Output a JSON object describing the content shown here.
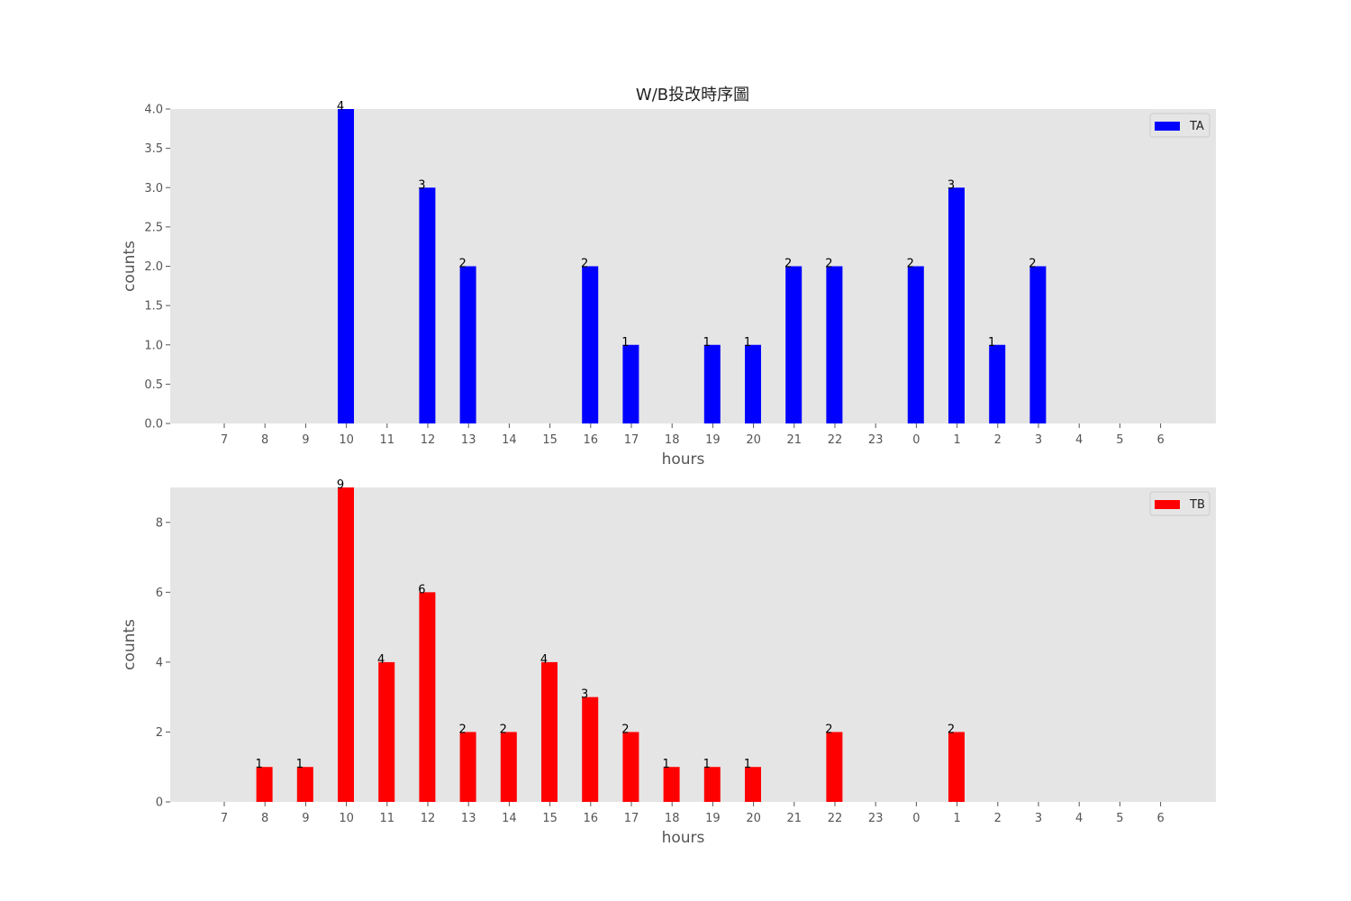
{
  "title": "W/B投改時序圖",
  "chart_data": [
    {
      "type": "bar",
      "categories": [
        "7",
        "8",
        "9",
        "10",
        "11",
        "12",
        "13",
        "14",
        "15",
        "16",
        "17",
        "18",
        "19",
        "20",
        "21",
        "22",
        "23",
        "0",
        "1",
        "2",
        "3",
        "4",
        "5",
        "6"
      ],
      "series": [
        {
          "name": "TA",
          "color": "#0000ff",
          "values": [
            0,
            0,
            0,
            4,
            0,
            3,
            2,
            0,
            0,
            2,
            1,
            0,
            1,
            1,
            2,
            2,
            0,
            2,
            3,
            1,
            2,
            0,
            0,
            0
          ]
        }
      ],
      "xlabel": "hours",
      "ylabel": "counts",
      "ylim": [
        0,
        4.0
      ],
      "yticks": [
        "0.0",
        "0.5",
        "1.0",
        "1.5",
        "2.0",
        "2.5",
        "3.0",
        "3.5",
        "4.0"
      ],
      "grid": false,
      "legend": "top-right"
    },
    {
      "type": "bar",
      "categories": [
        "7",
        "8",
        "9",
        "10",
        "11",
        "12",
        "13",
        "14",
        "15",
        "16",
        "17",
        "18",
        "19",
        "20",
        "21",
        "22",
        "23",
        "0",
        "1",
        "2",
        "3",
        "4",
        "5",
        "6"
      ],
      "series": [
        {
          "name": "TB",
          "color": "#ff0000",
          "values": [
            0,
            1,
            1,
            9,
            4,
            6,
            2,
            2,
            4,
            3,
            2,
            1,
            1,
            1,
            0,
            2,
            0,
            0,
            2,
            0,
            0,
            0,
            0,
            0
          ]
        }
      ],
      "xlabel": "hours",
      "ylabel": "counts",
      "ylim": [
        0,
        9
      ],
      "yticks": [
        "0",
        "2",
        "4",
        "6",
        "8"
      ],
      "grid": false,
      "legend": "top-right"
    }
  ]
}
